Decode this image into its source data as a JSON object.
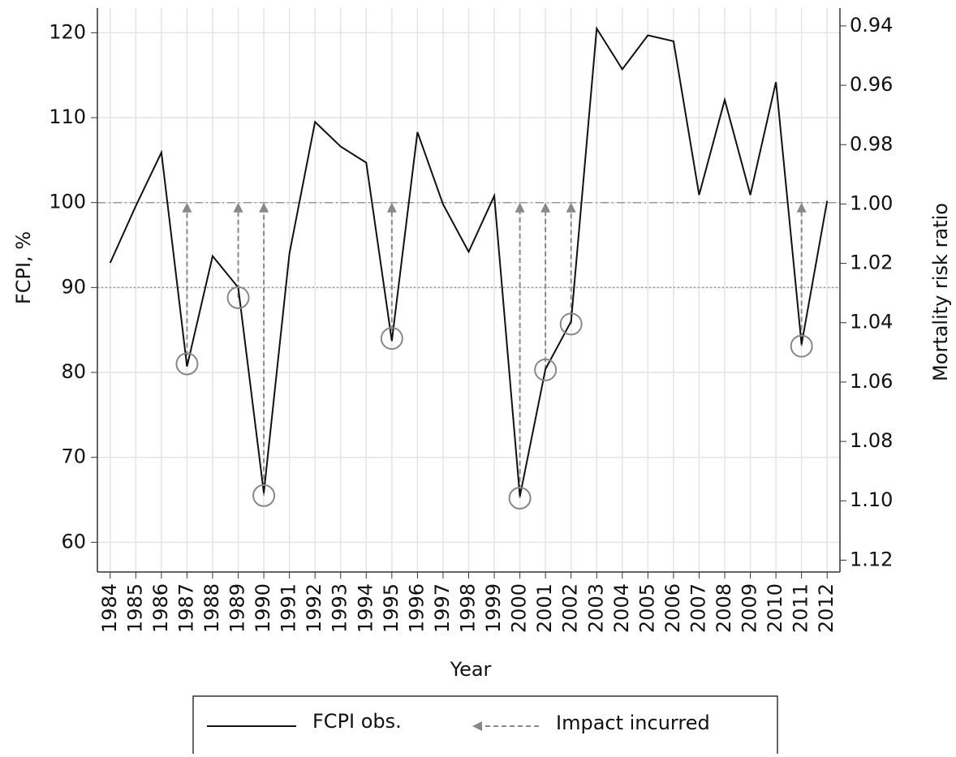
{
  "chart_data": {
    "type": "line",
    "x": [
      1984,
      1985,
      1986,
      1987,
      1988,
      1989,
      1990,
      1991,
      1992,
      1993,
      1994,
      1995,
      1996,
      1997,
      1998,
      1999,
      2000,
      2001,
      2002,
      2003,
      2004,
      2005,
      2006,
      2007,
      2008,
      2009,
      2010,
      2011,
      2012
    ],
    "series": [
      {
        "name": "FCPI obs.",
        "color": "#111111",
        "values": [
          92.9,
          99.6,
          105.9,
          80.7,
          93.7,
          90.0,
          65.8,
          94.0,
          109.5,
          106.6,
          104.7,
          83.7,
          108.3,
          99.8,
          94.2,
          100.8,
          65.4,
          80.4,
          86.0,
          120.5,
          115.7,
          119.7,
          119.0,
          100.9,
          112.1,
          100.9,
          114.2,
          83.3,
          100.2
        ]
      }
    ],
    "impacts": {
      "name": "Impact incurred",
      "color": "#888888",
      "x": [
        1987,
        1989,
        1990,
        1995,
        2000,
        2001,
        2002,
        2011
      ],
      "values": [
        81.0,
        88.8,
        65.5,
        84.0,
        65.2,
        80.3,
        85.7,
        83.1
      ]
    },
    "reference_lines": [
      100,
      90
    ],
    "xlim": [
      1983.5,
      2012.5
    ],
    "xticks": [
      1984,
      1985,
      1986,
      1987,
      1988,
      1989,
      1990,
      1991,
      1992,
      1993,
      1994,
      1995,
      1996,
      1997,
      1998,
      1999,
      2000,
      2001,
      2002,
      2003,
      2004,
      2005,
      2006,
      2007,
      2008,
      2009,
      2010,
      2011,
      2012
    ],
    "ylim": [
      56.5,
      122.9
    ],
    "yticks": [
      60,
      70,
      80,
      90,
      100,
      110,
      120
    ],
    "y2lim": [
      1.124,
      0.934
    ],
    "y2ticks": [
      0.94,
      0.96,
      0.98,
      {
        "value": 1,
        "label": "1.00"
      },
      1.02,
      1.04,
      1.06,
      1.08,
      {
        "value": 1.1,
        "label": "1.10"
      },
      1.12
    ],
    "xlabel": "Year",
    "ylabel": "FCPI, %",
    "y2label": "Mortality risk ratio",
    "grid": true
  }
}
